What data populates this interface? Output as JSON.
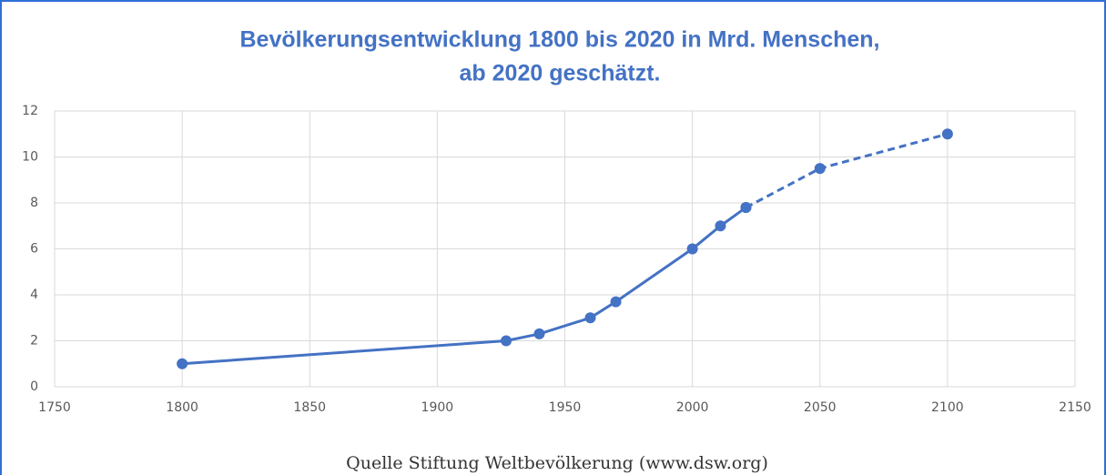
{
  "chart_data": {
    "type": "line",
    "title": [
      "Bevölkerungsentwicklung 1800 bis 2020 in Mrd. Menschen,",
      "ab 2020 geschätzt."
    ],
    "caption": "Quelle Stiftung Weltbevölkerung (www.dsw.org)",
    "series": [
      {
        "color": "#4472c4",
        "line_style": "solid",
        "x": [
          1800,
          1927,
          1940,
          1960,
          1970,
          2000,
          2011,
          2021
        ],
        "values": [
          1,
          2,
          2.3,
          3,
          3.7,
          6,
          7,
          7.8
        ]
      },
      {
        "color": "#4472c4",
        "line_style": "dashed",
        "x": [
          2021,
          2050,
          2100
        ],
        "values": [
          7.8,
          9.5,
          11
        ]
      }
    ],
    "xlim": [
      1750,
      2150
    ],
    "xticks": [
      1750,
      1800,
      1850,
      1900,
      1950,
      2000,
      2050,
      2100,
      2150
    ],
    "ylim": [
      0,
      12
    ],
    "yticks": [
      0,
      2,
      4,
      6,
      8,
      10,
      12
    ],
    "grid": true
  }
}
